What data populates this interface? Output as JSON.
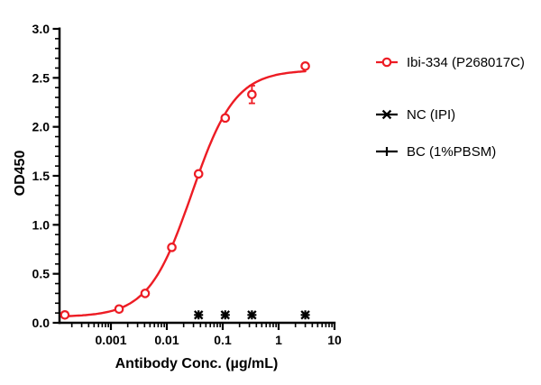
{
  "figure": {
    "background": "#ffffff",
    "axis_color": "#000000"
  },
  "chart_data": {
    "type": "scatter",
    "title": "",
    "xlabel": "Antibody Conc. (µg/mL)",
    "ylabel": "OD450",
    "x_scale": "log10",
    "xlim": [
      0.00012,
      10
    ],
    "ylim": [
      0,
      3
    ],
    "x_ticks": [
      {
        "value": 0.001,
        "label": "0.001"
      },
      {
        "value": 0.01,
        "label": "0.01"
      },
      {
        "value": 0.1,
        "label": "0.1"
      },
      {
        "value": 1,
        "label": "1"
      },
      {
        "value": 10,
        "label": "10"
      }
    ],
    "y_ticks": [
      {
        "value": 0.0,
        "label": "0.0"
      },
      {
        "value": 0.5,
        "label": "0.5"
      },
      {
        "value": 1.0,
        "label": "1.0"
      },
      {
        "value": 1.5,
        "label": "1.5"
      },
      {
        "value": 2.0,
        "label": "2.0"
      },
      {
        "value": 2.5,
        "label": "2.5"
      },
      {
        "value": 3.0,
        "label": "3.0"
      }
    ],
    "y_minor_step": 0.1,
    "grid": false,
    "legend_position": "right",
    "series": [
      {
        "name": "Ibi-334 (P268017C)",
        "color": "#ED1C24",
        "marker": "open-circle",
        "x": [
          0.00015,
          0.0014,
          0.0041,
          0.0123,
          0.037,
          0.111,
          0.333,
          3
        ],
        "y": [
          0.08,
          0.14,
          0.3,
          0.77,
          1.52,
          2.09,
          2.33,
          2.62
        ],
        "y_err": [
          0,
          0,
          0,
          0,
          0,
          0,
          0.09,
          0
        ],
        "fit": {
          "type": "4PL",
          "bottom": 0.06,
          "top": 2.58,
          "ec50": 0.028,
          "hill": 1.12,
          "range": [
            0.00015,
            3
          ]
        }
      },
      {
        "name": "NC (IPI)",
        "color": "#000000",
        "marker": "x",
        "x": [
          0.037,
          0.111,
          0.333,
          3
        ],
        "y": [
          0.08,
          0.08,
          0.08,
          0.08
        ]
      },
      {
        "name": "BC (1%PBSM)",
        "color": "#000000",
        "marker": "plus",
        "x": [
          0.037,
          0.111,
          0.333,
          3
        ],
        "y": [
          0.08,
          0.08,
          0.08,
          0.08
        ]
      }
    ]
  }
}
